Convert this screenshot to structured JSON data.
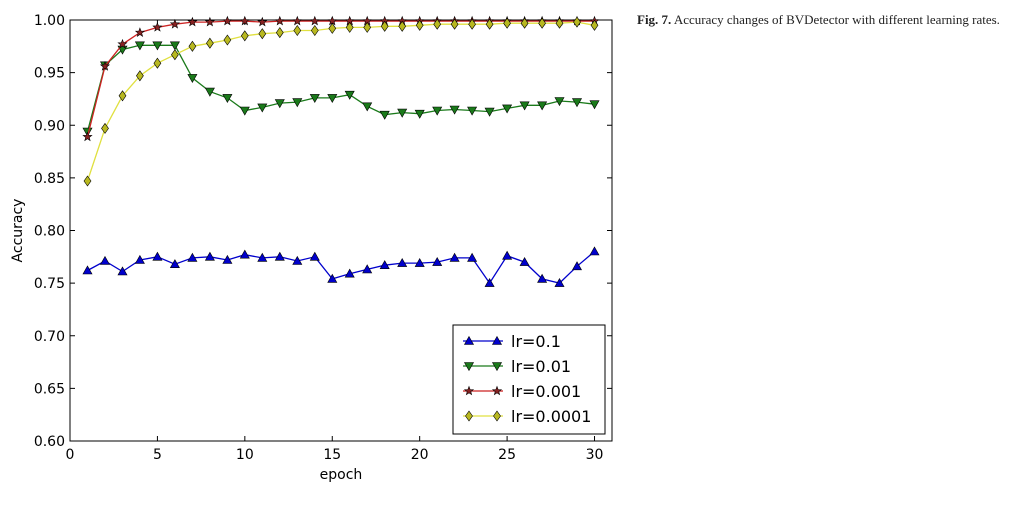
{
  "caption": {
    "label": "Fig. 7.",
    "text": "Accuracy changes of BVDetector with different learning rates."
  },
  "chart_data": {
    "type": "line",
    "title": "",
    "xlabel": "epoch",
    "ylabel": "Accuracy",
    "xlim": [
      0,
      31
    ],
    "ylim": [
      0.6,
      1.0
    ],
    "xticks": [
      0,
      5,
      10,
      15,
      20,
      25,
      30
    ],
    "yticks": [
      0.6,
      0.65,
      0.7,
      0.75,
      0.8,
      0.85,
      0.9,
      0.95,
      1.0
    ],
    "xtick_labels": [
      "0",
      "5",
      "10",
      "15",
      "20",
      "25",
      "30"
    ],
    "ytick_labels": [
      "0.60",
      "0.65",
      "0.70",
      "0.75",
      "0.80",
      "0.85",
      "0.90",
      "0.95",
      "1.00"
    ],
    "legend_position": "lower-right",
    "grid": false,
    "x": [
      1,
      2,
      3,
      4,
      5,
      6,
      7,
      8,
      9,
      10,
      11,
      12,
      13,
      14,
      15,
      16,
      17,
      18,
      19,
      20,
      21,
      22,
      23,
      24,
      25,
      26,
      27,
      28,
      29,
      30
    ],
    "series": [
      {
        "name": "lr=0.1",
        "color": "#0000cc",
        "fill": "#0000cc",
        "marker": "triangle-up",
        "values": [
          0.762,
          0.771,
          0.761,
          0.772,
          0.775,
          0.768,
          0.774,
          0.775,
          0.772,
          0.777,
          0.774,
          0.775,
          0.771,
          0.775,
          0.754,
          0.759,
          0.763,
          0.767,
          0.769,
          0.769,
          0.77,
          0.774,
          0.774,
          0.75,
          0.776,
          0.77,
          0.754,
          0.75,
          0.766,
          0.78
        ]
      },
      {
        "name": "lr=0.01",
        "color": "#1a7a1a",
        "fill": "#1a7a1a",
        "marker": "triangle-down",
        "values": [
          0.894,
          0.957,
          0.972,
          0.976,
          0.976,
          0.976,
          0.945,
          0.932,
          0.926,
          0.914,
          0.917,
          0.921,
          0.922,
          0.926,
          0.926,
          0.929,
          0.918,
          0.91,
          0.912,
          0.911,
          0.914,
          0.915,
          0.914,
          0.913,
          0.916,
          0.919,
          0.919,
          0.923,
          0.922,
          0.92
        ]
      },
      {
        "name": "lr=0.001",
        "color": "#cc2222",
        "fill": "#882222",
        "marker": "star",
        "values": [
          0.889,
          0.956,
          0.977,
          0.988,
          0.993,
          0.996,
          0.998,
          0.998,
          0.999,
          0.999,
          0.998,
          0.999,
          0.999,
          0.999,
          0.999,
          0.999,
          0.999,
          0.999,
          0.999,
          0.999,
          0.999,
          0.999,
          0.999,
          0.999,
          0.999,
          0.999,
          0.999,
          0.999,
          0.999,
          0.999
        ]
      },
      {
        "name": "lr=0.0001",
        "color": "#e0e040",
        "fill": "#b8b820",
        "marker": "diamond",
        "values": [
          0.847,
          0.897,
          0.928,
          0.947,
          0.959,
          0.967,
          0.975,
          0.978,
          0.981,
          0.985,
          0.987,
          0.988,
          0.99,
          0.99,
          0.992,
          0.993,
          0.993,
          0.994,
          0.994,
          0.995,
          0.996,
          0.996,
          0.996,
          0.996,
          0.997,
          0.997,
          0.997,
          0.997,
          0.998,
          0.995
        ]
      }
    ]
  }
}
